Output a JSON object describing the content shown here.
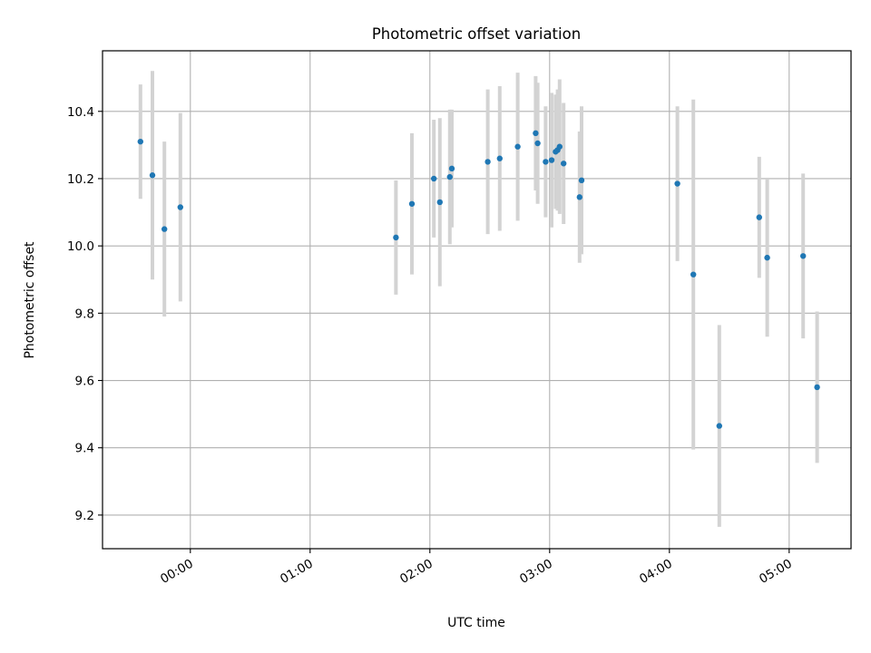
{
  "chart_data": {
    "type": "scatter",
    "title": "Photometric offset variation",
    "xlabel": "UTC time",
    "ylabel": "Photometric offset",
    "xlim": [
      "23:16",
      "05:31"
    ],
    "ylim": [
      9.1,
      10.58
    ],
    "x_ticks": [
      "00:00",
      "01:00",
      "02:00",
      "03:00",
      "04:00",
      "05:00"
    ],
    "y_ticks": [
      "9.2",
      "9.4",
      "9.6",
      "9.8",
      "10.0",
      "10.2",
      "10.4"
    ],
    "grid": true,
    "colors": {
      "points": "#1f77b4",
      "errorbars": "#d3d3d3",
      "grid": "#b0b0b0"
    },
    "points": [
      {
        "x": "23:35",
        "y": 10.31,
        "yerr": 0.17
      },
      {
        "x": "23:41",
        "y": 10.21,
        "yerr": 0.31
      },
      {
        "x": "23:47",
        "y": 10.05,
        "yerr": 0.26
      },
      {
        "x": "23:55",
        "y": 10.115,
        "yerr": 0.28
      },
      {
        "x": "01:43",
        "y": 10.025,
        "yerr": 0.17
      },
      {
        "x": "01:51",
        "y": 10.125,
        "yerr": 0.21
      },
      {
        "x": "02:02",
        "y": 10.2,
        "yerr": 0.175
      },
      {
        "x": "02:05",
        "y": 10.13,
        "yerr": 0.25
      },
      {
        "x": "02:10",
        "y": 10.205,
        "yerr": 0.2
      },
      {
        "x": "02:11",
        "y": 10.23,
        "yerr": 0.175
      },
      {
        "x": "02:29",
        "y": 10.25,
        "yerr": 0.215
      },
      {
        "x": "02:35",
        "y": 10.26,
        "yerr": 0.215
      },
      {
        "x": "02:44",
        "y": 10.295,
        "yerr": 0.22
      },
      {
        "x": "02:53",
        "y": 10.335,
        "yerr": 0.17
      },
      {
        "x": "02:54",
        "y": 10.305,
        "yerr": 0.18
      },
      {
        "x": "02:58",
        "y": 10.25,
        "yerr": 0.165
      },
      {
        "x": "03:01",
        "y": 10.255,
        "yerr": 0.2
      },
      {
        "x": "03:03",
        "y": 10.28,
        "yerr": 0.17
      },
      {
        "x": "03:04",
        "y": 10.285,
        "yerr": 0.18
      },
      {
        "x": "03:05",
        "y": 10.295,
        "yerr": 0.2
      },
      {
        "x": "03:07",
        "y": 10.245,
        "yerr": 0.18
      },
      {
        "x": "03:15",
        "y": 10.145,
        "yerr": 0.195
      },
      {
        "x": "03:16",
        "y": 10.195,
        "yerr": 0.22
      },
      {
        "x": "04:04",
        "y": 10.185,
        "yerr": 0.23
      },
      {
        "x": "04:12",
        "y": 9.915,
        "yerr": 0.52
      },
      {
        "x": "04:25",
        "y": 9.465,
        "yerr": 0.3
      },
      {
        "x": "04:45",
        "y": 10.085,
        "yerr": 0.18
      },
      {
        "x": "04:49",
        "y": 9.965,
        "yerr": 0.235
      },
      {
        "x": "05:07",
        "y": 9.97,
        "yerr": 0.245
      },
      {
        "x": "05:14",
        "y": 9.58,
        "yerr": 0.225
      }
    ]
  }
}
